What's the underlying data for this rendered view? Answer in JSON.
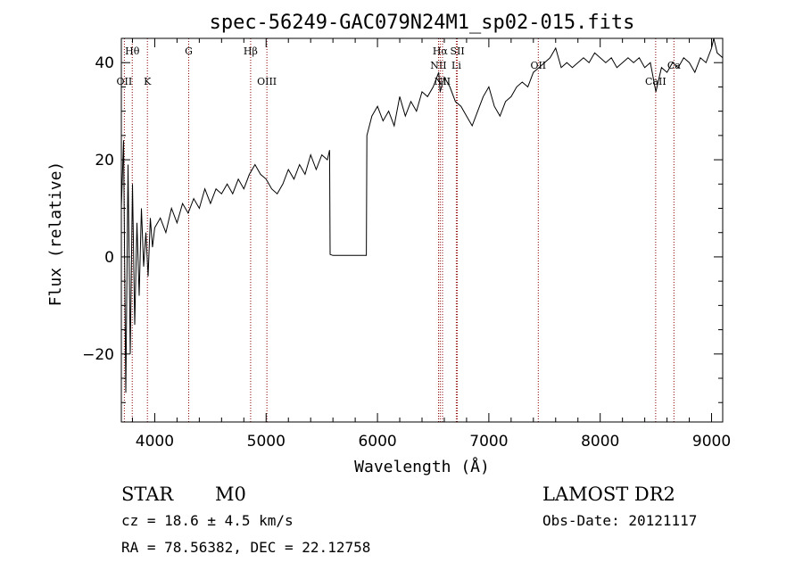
{
  "chart_data": {
    "type": "line",
    "title": "spec-56249-GAC079N24M1_sp02-015.fits",
    "xlabel": "Wavelength (Å)",
    "ylabel": "Flux (relative)",
    "xlim": [
      3700,
      9100
    ],
    "ylim": [
      -34,
      45
    ],
    "x_ticks": [
      4000,
      5000,
      6000,
      7000,
      8000,
      9000
    ],
    "y_ticks": [
      -20,
      0,
      20,
      40
    ],
    "x_tick_labels": [
      "4000",
      "5000",
      "6000",
      "7000",
      "8000",
      "9000"
    ],
    "y_tick_labels": [
      "−20",
      "0",
      "20",
      "40"
    ],
    "line_color": "#000000",
    "marker_color": "#8b0000",
    "series": [
      {
        "points": [
          [
            3700,
            10
          ],
          [
            3720,
            24
          ],
          [
            3740,
            -28
          ],
          [
            3760,
            19
          ],
          [
            3780,
            -20
          ],
          [
            3800,
            15
          ],
          [
            3820,
            -14
          ],
          [
            3840,
            7
          ],
          [
            3860,
            -8
          ],
          [
            3880,
            10
          ],
          [
            3900,
            -2
          ],
          [
            3920,
            5
          ],
          [
            3940,
            -4
          ],
          [
            3960,
            8
          ],
          [
            3980,
            2
          ],
          [
            4000,
            6
          ],
          [
            4050,
            8
          ],
          [
            4100,
            5
          ],
          [
            4150,
            10
          ],
          [
            4200,
            7
          ],
          [
            4250,
            11
          ],
          [
            4300,
            9
          ],
          [
            4350,
            12
          ],
          [
            4400,
            10
          ],
          [
            4450,
            14
          ],
          [
            4500,
            11
          ],
          [
            4550,
            14
          ],
          [
            4600,
            13
          ],
          [
            4650,
            15
          ],
          [
            4700,
            13
          ],
          [
            4750,
            16
          ],
          [
            4800,
            14
          ],
          [
            4850,
            17
          ],
          [
            4900,
            19
          ],
          [
            4950,
            17
          ],
          [
            5000,
            16
          ],
          [
            5050,
            14
          ],
          [
            5100,
            13
          ],
          [
            5150,
            15
          ],
          [
            5200,
            18
          ],
          [
            5250,
            16
          ],
          [
            5300,
            19
          ],
          [
            5350,
            17
          ],
          [
            5400,
            21
          ],
          [
            5450,
            18
          ],
          [
            5500,
            21
          ],
          [
            5550,
            20
          ],
          [
            5570,
            22
          ],
          [
            5575,
            0.5
          ],
          [
            5600,
            0.3
          ],
          [
            5700,
            0.3
          ],
          [
            5800,
            0.3
          ],
          [
            5900,
            0.3
          ],
          [
            5905,
            25
          ],
          [
            5950,
            29
          ],
          [
            6000,
            31
          ],
          [
            6050,
            28
          ],
          [
            6100,
            30
          ],
          [
            6150,
            27
          ],
          [
            6200,
            33
          ],
          [
            6250,
            29
          ],
          [
            6300,
            32
          ],
          [
            6350,
            30
          ],
          [
            6400,
            34
          ],
          [
            6450,
            33
          ],
          [
            6500,
            35
          ],
          [
            6550,
            38
          ],
          [
            6563,
            34
          ],
          [
            6600,
            37
          ],
          [
            6650,
            35
          ],
          [
            6700,
            32
          ],
          [
            6750,
            31
          ],
          [
            6800,
            29
          ],
          [
            6850,
            27
          ],
          [
            6900,
            30
          ],
          [
            6950,
            33
          ],
          [
            7000,
            35
          ],
          [
            7050,
            31
          ],
          [
            7100,
            29
          ],
          [
            7150,
            32
          ],
          [
            7200,
            33
          ],
          [
            7250,
            35
          ],
          [
            7300,
            36
          ],
          [
            7350,
            35
          ],
          [
            7400,
            38
          ],
          [
            7450,
            39
          ],
          [
            7500,
            40
          ],
          [
            7550,
            41
          ],
          [
            7600,
            43
          ],
          [
            7650,
            39
          ],
          [
            7700,
            40
          ],
          [
            7750,
            39
          ],
          [
            7800,
            40
          ],
          [
            7850,
            41
          ],
          [
            7900,
            40
          ],
          [
            7950,
            42
          ],
          [
            8000,
            41
          ],
          [
            8050,
            40
          ],
          [
            8100,
            41
          ],
          [
            8150,
            39
          ],
          [
            8200,
            40
          ],
          [
            8250,
            41
          ],
          [
            8300,
            40
          ],
          [
            8350,
            41
          ],
          [
            8400,
            39
          ],
          [
            8450,
            40
          ],
          [
            8500,
            34
          ],
          [
            8550,
            39
          ],
          [
            8600,
            38
          ],
          [
            8650,
            40
          ],
          [
            8700,
            39
          ],
          [
            8750,
            41
          ],
          [
            8800,
            40
          ],
          [
            8850,
            38
          ],
          [
            8900,
            41
          ],
          [
            8950,
            40
          ],
          [
            9000,
            43
          ],
          [
            9020,
            45
          ],
          [
            9050,
            42
          ],
          [
            9100,
            41
          ]
        ]
      }
    ],
    "line_markers": [
      {
        "x": 3727,
        "label": "OII",
        "row": 2
      },
      {
        "x": 3798,
        "label": "Hθ",
        "row": 1
      },
      {
        "x": 3934,
        "label": "K",
        "row": 2
      },
      {
        "x": 4305,
        "label": "G",
        "row": 1
      },
      {
        "x": 4861,
        "label": "Hβ",
        "row": 1
      },
      {
        "x": 5007,
        "label": "OIII",
        "row": 2
      },
      {
        "x": 6548,
        "label": "NII",
        "row": 1.5
      },
      {
        "x": 6563,
        "label": "Hα",
        "row": 1
      },
      {
        "x": 6584,
        "label": "NII",
        "row": 2
      },
      {
        "x": 6708,
        "label": "Li",
        "row": 1.5
      },
      {
        "x": 6717,
        "label": "SII",
        "row": 1
      },
      {
        "x": 7444,
        "label": "OII",
        "row": 1.5
      },
      {
        "x": 8498,
        "label": "CaII",
        "row": 2
      },
      {
        "x": 8662,
        "label": "Ca",
        "row": 1.5
      }
    ]
  },
  "info": {
    "class": "STAR",
    "subclass": "M0",
    "survey": "LAMOST DR2",
    "cz": "cz = 18.6 ± 4.5 km/s",
    "obs_date": "Obs-Date: 20121117",
    "coords": "RA =  78.56382, DEC =  22.12758"
  }
}
